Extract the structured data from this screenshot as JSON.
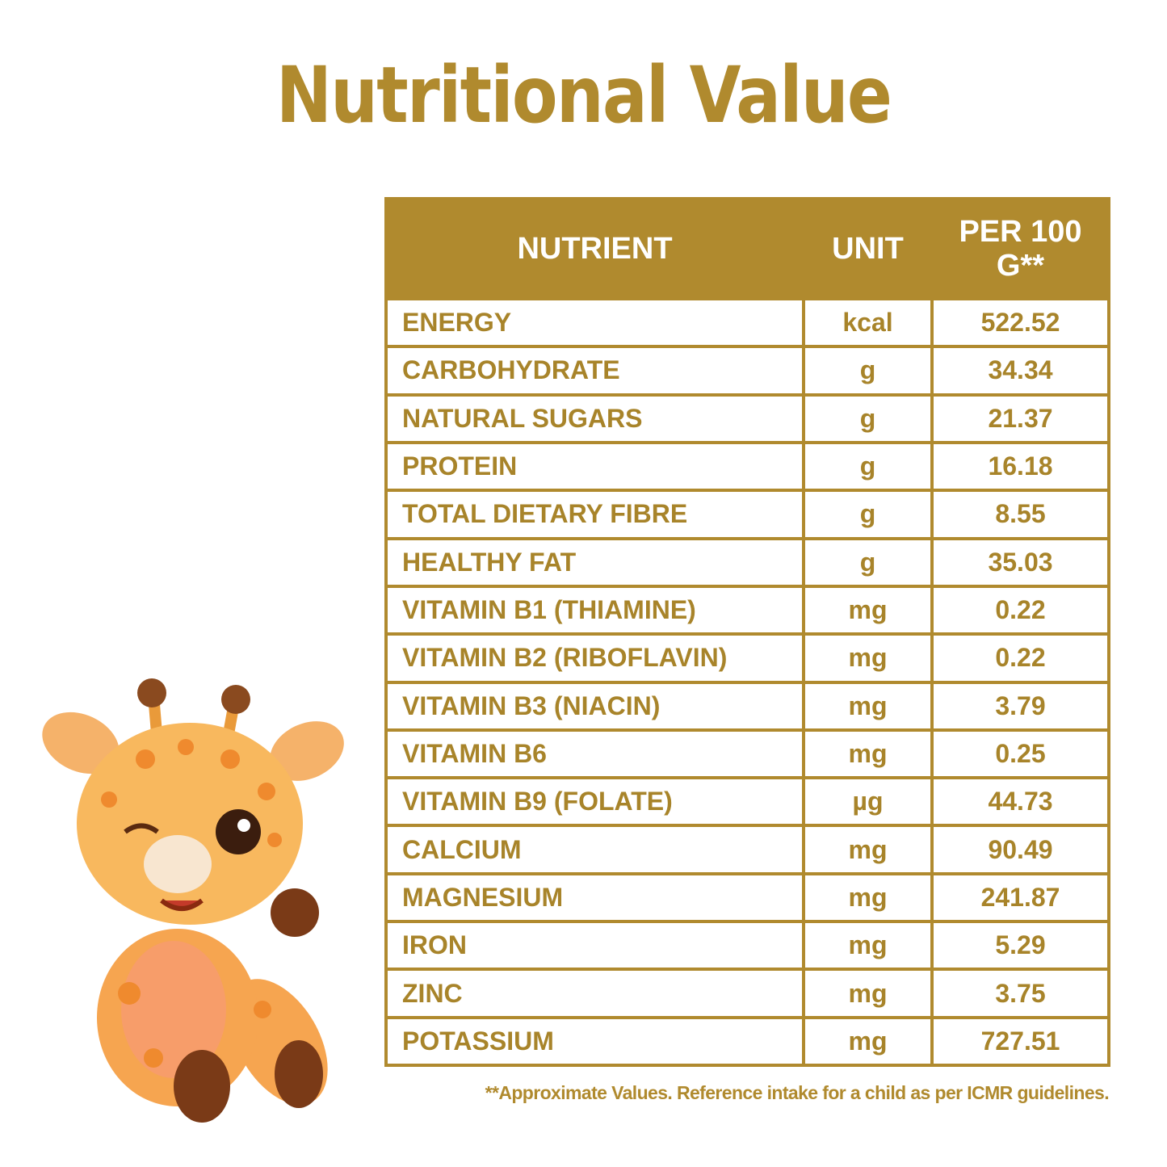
{
  "header": {
    "title": "Nutritional Value"
  },
  "table": {
    "columns": [
      "NUTRIENT",
      "UNIT",
      "PER 100 G**"
    ],
    "rows": [
      [
        "ENERGY",
        "kcal",
        "522.52"
      ],
      [
        "CARBOHYDRATE",
        "g",
        "34.34"
      ],
      [
        "NATURAL SUGARS",
        "g",
        "21.37"
      ],
      [
        "PROTEIN",
        "g",
        "16.18"
      ],
      [
        "TOTAL DIETARY FIBRE",
        "g",
        "8.55"
      ],
      [
        "HEALTHY FAT",
        "g",
        "35.03"
      ],
      [
        "VITAMIN B1 (THIAMINE)",
        "mg",
        "0.22"
      ],
      [
        "VITAMIN B2 (RIBOFLAVIN)",
        "mg",
        "0.22"
      ],
      [
        "VITAMIN B3 (NIACIN)",
        "mg",
        "3.79"
      ],
      [
        "VITAMIN B6",
        "mg",
        "0.25"
      ],
      [
        "VITAMIN B9 (FOLATE)",
        "µg",
        "44.73"
      ],
      [
        "CALCIUM",
        "mg",
        "90.49"
      ],
      [
        "MAGNESIUM",
        "mg",
        "241.87"
      ],
      [
        "IRON",
        "mg",
        "5.29"
      ],
      [
        "ZINC",
        "mg",
        "3.75"
      ],
      [
        "POTASSIUM",
        "mg",
        "727.51"
      ]
    ]
  },
  "footnote": "**Approximate Values. Reference intake for a child as per ICMR guidelines."
}
